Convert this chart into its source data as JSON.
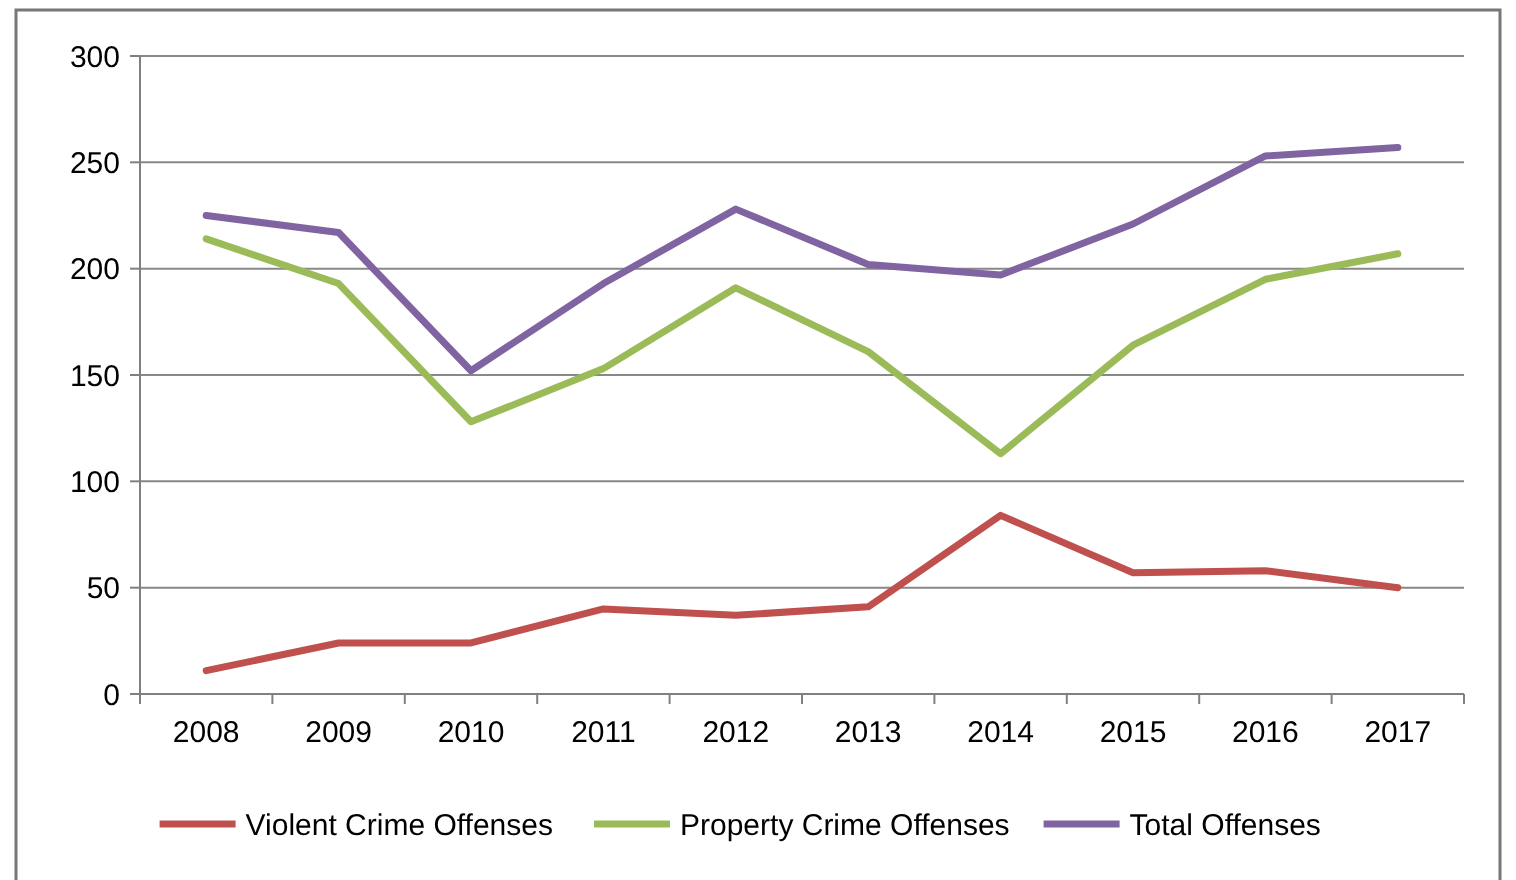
{
  "chart_data": {
    "type": "line",
    "categories": [
      "2008",
      "2009",
      "2010",
      "2011",
      "2012",
      "2013",
      "2014",
      "2015",
      "2016",
      "2017"
    ],
    "series": [
      {
        "name": "Violent Crime Offenses",
        "color": "#c0504d",
        "values": [
          11,
          24,
          24,
          40,
          37,
          41,
          84,
          57,
          58,
          50
        ]
      },
      {
        "name": "Property Crime Offenses",
        "color": "#9bbb59",
        "values": [
          214,
          193,
          128,
          153,
          191,
          161,
          113,
          164,
          195,
          207
        ]
      },
      {
        "name": "Total Offenses",
        "color": "#8064a2",
        "values": [
          225,
          217,
          152,
          193,
          228,
          202,
          197,
          221,
          253,
          257
        ]
      }
    ],
    "ylim": [
      0,
      300
    ],
    "yticks": [
      0,
      50,
      100,
      150,
      200,
      250,
      300
    ],
    "grid": "y",
    "legend": "bottom",
    "marker": "none",
    "line_style": "solid"
  }
}
